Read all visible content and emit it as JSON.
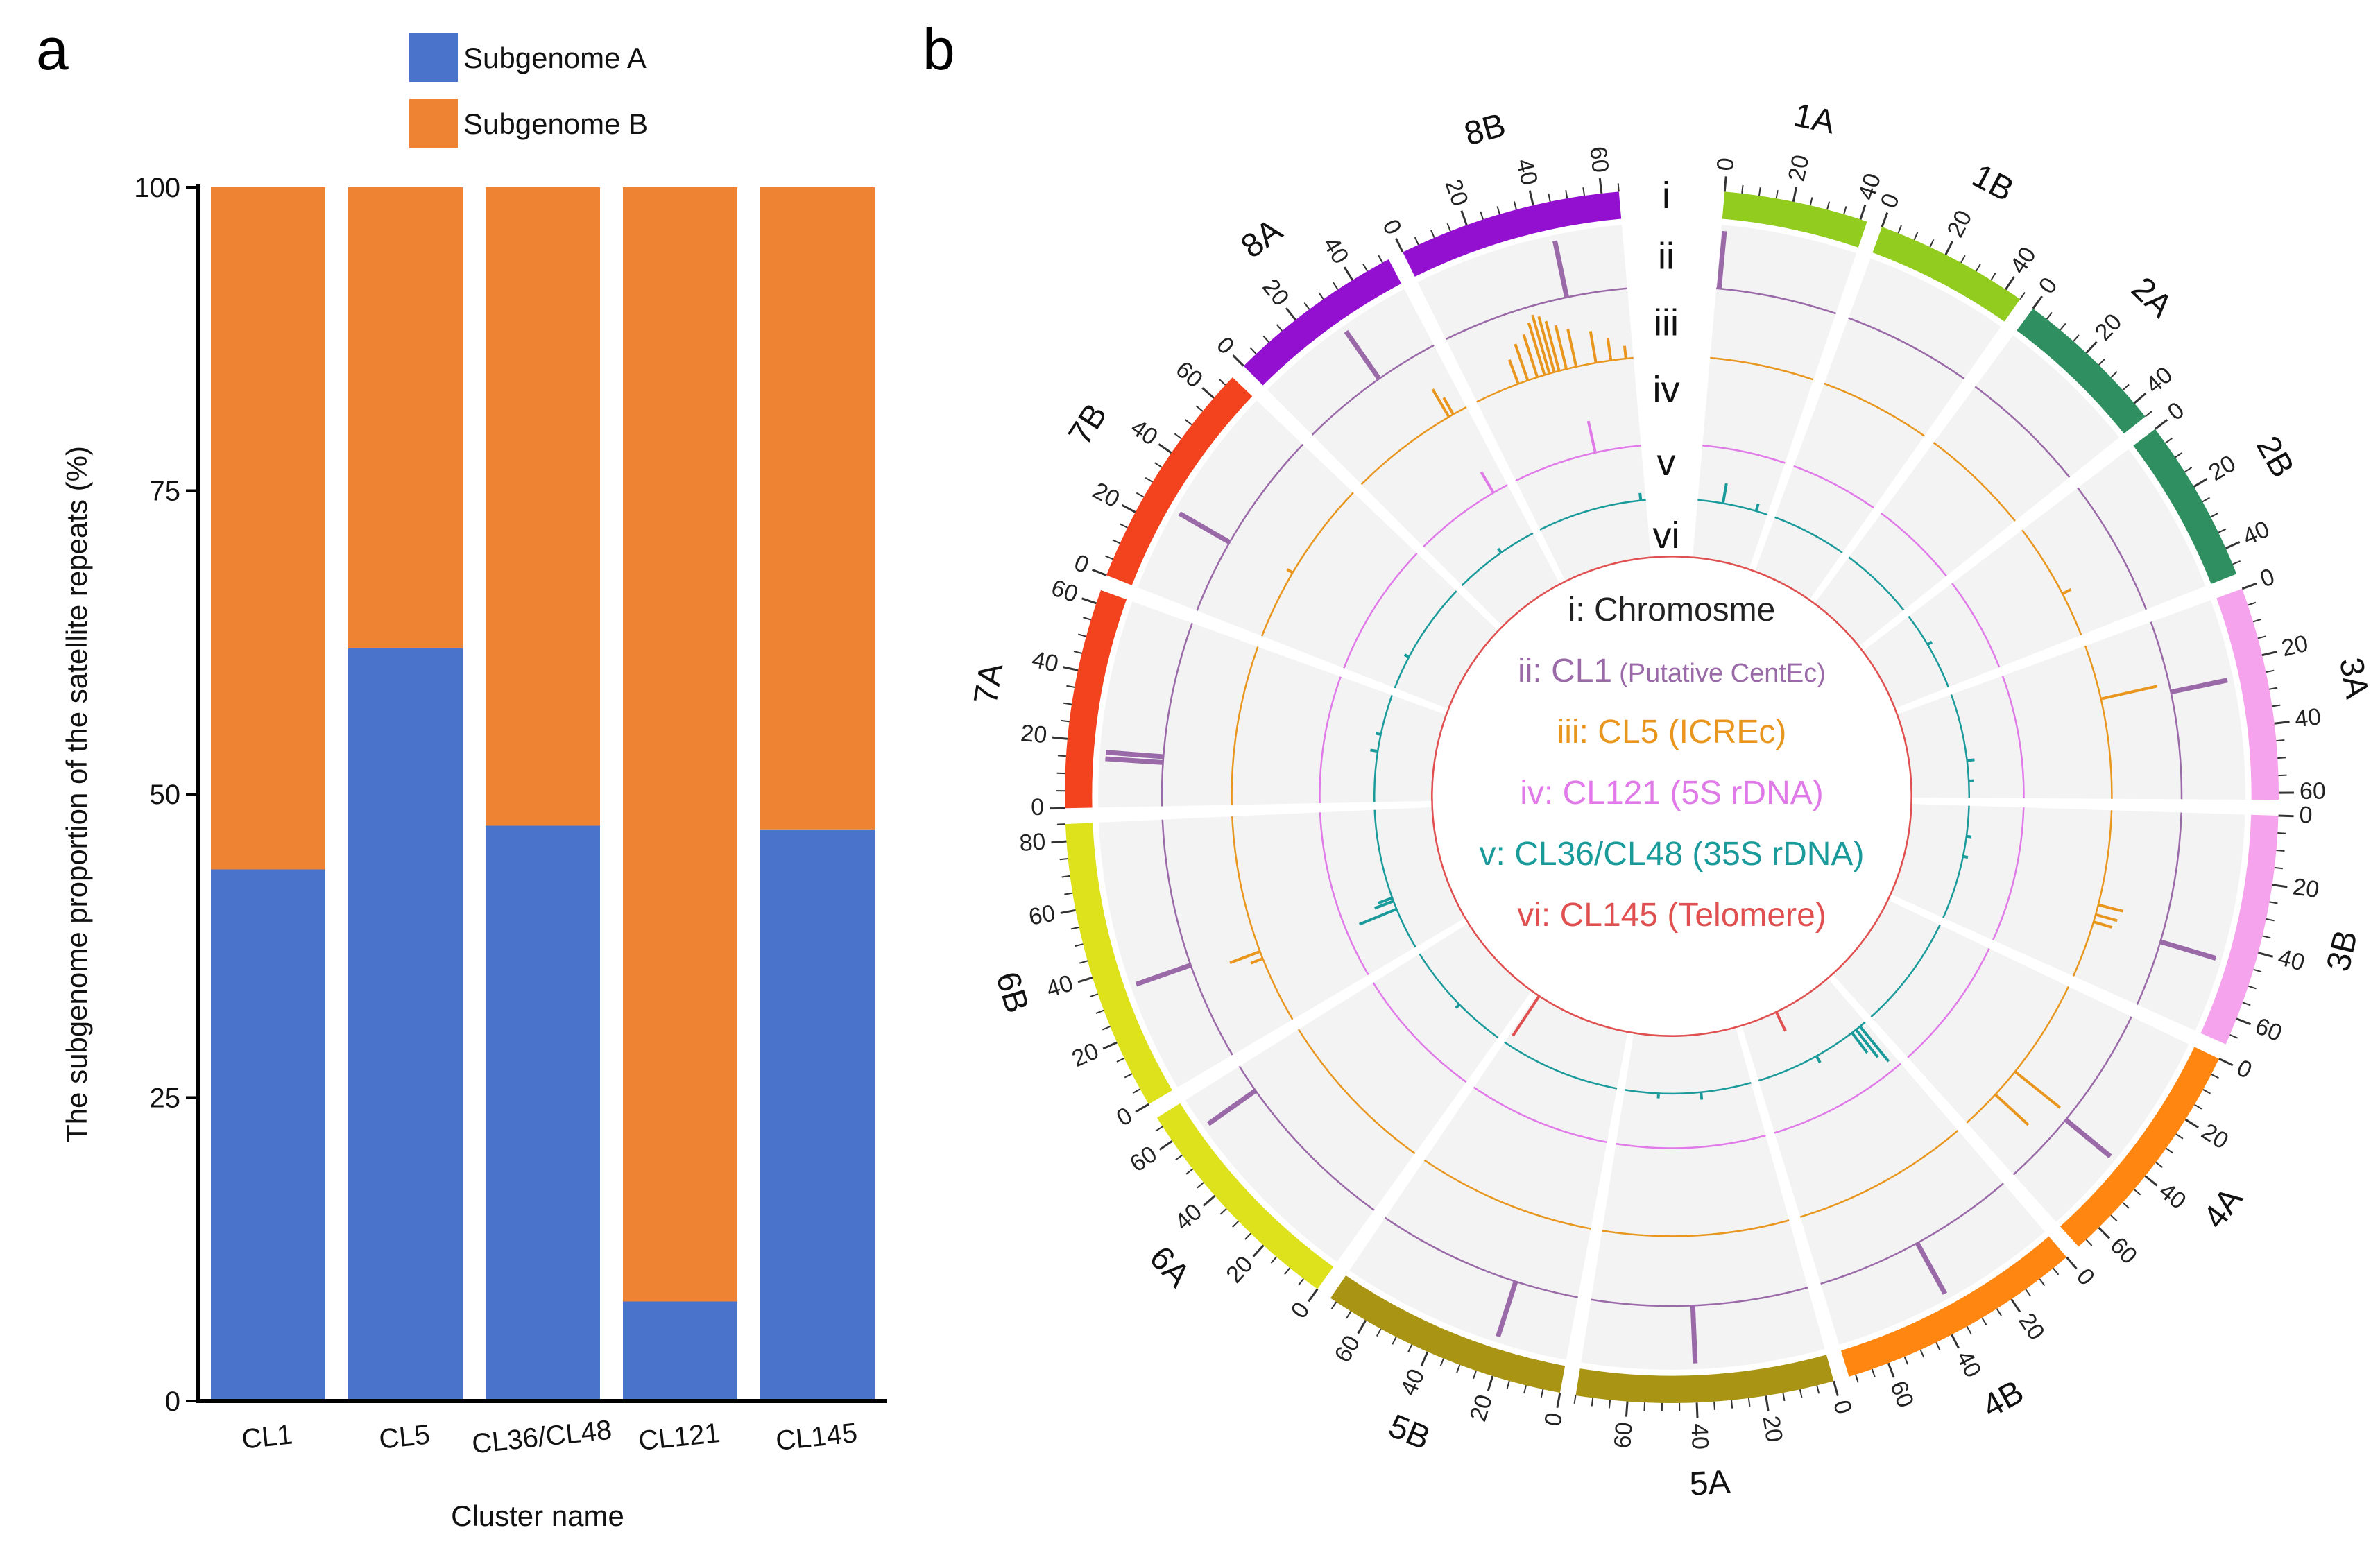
{
  "panels": {
    "a": "a",
    "b": "b"
  },
  "chart_data": [
    {
      "type": "bar",
      "stacked": true,
      "categories": [
        "CL1",
        "CL5",
        "CL36/CL48",
        "CL121",
        "CL145"
      ],
      "series": [
        {
          "name": "Subgenome A",
          "color": "#4a74cc",
          "values": [
            43.8,
            62.0,
            47.4,
            8.2,
            47.1
          ]
        },
        {
          "name": "Subgenome B",
          "color": "#ee8433",
          "values": [
            56.2,
            38.0,
            52.6,
            91.8,
            52.9
          ]
        }
      ],
      "xlabel": "Cluster name",
      "ylabel": "The subgenome proportion of the satellite repeats (%)",
      "ylim": [
        0,
        100
      ],
      "yticks": [
        0,
        25,
        50,
        75,
        100
      ],
      "legend": "top"
    },
    {
      "type": "circos",
      "tick_step": 20,
      "chromosomes": [
        {
          "name": "1A",
          "length": 42,
          "color": "#92cc1e"
        },
        {
          "name": "1B",
          "length": 45,
          "color": "#92cc1e"
        },
        {
          "name": "2A",
          "length": 45,
          "color": "#2f8f60"
        },
        {
          "name": "2B",
          "length": 48,
          "color": "#2f8f60"
        },
        {
          "name": "3A",
          "length": 62,
          "color": "#f5a3ec"
        },
        {
          "name": "3B",
          "length": 68,
          "color": "#f5a3ec"
        },
        {
          "name": "4A",
          "length": 68,
          "color": "#ff8610"
        },
        {
          "name": "4B",
          "length": 72,
          "color": "#ff8610"
        },
        {
          "name": "5A",
          "length": 75,
          "color": "#a99414"
        },
        {
          "name": "5B",
          "length": 72,
          "color": "#a99414"
        },
        {
          "name": "6A",
          "length": 68,
          "color": "#dde21c"
        },
        {
          "name": "6B",
          "length": 85,
          "color": "#dde21c"
        },
        {
          "name": "7A",
          "length": 64,
          "color": "#f2421e"
        },
        {
          "name": "7B",
          "length": 68,
          "color": "#f2421e"
        },
        {
          "name": "8A",
          "length": 52,
          "color": "#9410d0"
        },
        {
          "name": "8B",
          "length": 65,
          "color": "#9410d0"
        }
      ],
      "tracks": [
        {
          "id": "i",
          "label": "i: Chromosme",
          "color": "#222222"
        },
        {
          "id": "ii",
          "label": "ii: CL1",
          "sublabel": "(Putative CentEc)",
          "color": "#9a6aa8",
          "features": [
            [
              "1A",
              1,
              0.9
            ],
            [
              "3A",
              25,
              0.9
            ],
            [
              "3B",
              45,
              0.9
            ],
            [
              "4A",
              42,
              0.9
            ],
            [
              "4B",
              36,
              0.9
            ],
            [
              "5A",
              40,
              0.9
            ],
            [
              "5B",
              22,
              0.9
            ],
            [
              "6A",
              58,
              0.9
            ],
            [
              "6B",
              34,
              0.9
            ],
            [
              "7A",
              15,
              0.9
            ],
            [
              "7A",
              17,
              0.9
            ],
            [
              "7B",
              26,
              0.9
            ],
            [
              "8A",
              30,
              0.9
            ],
            [
              "8B",
              44,
              0.9
            ]
          ]
        },
        {
          "id": "iii",
          "label": "iii: CL5 (ICREc)",
          "color": "#e8961e",
          "features": [
            [
              "8A",
              44,
              0.5
            ],
            [
              "8A",
              46,
              0.3
            ],
            [
              "8B",
              18,
              0.4
            ],
            [
              "8B",
              22,
              0.6
            ],
            [
              "8B",
              26,
              0.7
            ],
            [
              "8B",
              29,
              0.85
            ],
            [
              "8B",
              31,
              0.95
            ],
            [
              "8B",
              33,
              0.9
            ],
            [
              "8B",
              35,
              0.8
            ],
            [
              "8B",
              38,
              0.7
            ],
            [
              "8B",
              42,
              0.6
            ],
            [
              "8B",
              50,
              0.5
            ],
            [
              "8B",
              56,
              0.35
            ],
            [
              "8B",
              62,
              0.2
            ],
            [
              "7B",
              28,
              0.1
            ],
            [
              "2B",
              30,
              0.15
            ],
            [
              "3A",
              22,
              0.9
            ],
            [
              "3B",
              38,
              0.4
            ],
            [
              "3B",
              42,
              0.35
            ],
            [
              "3B",
              45,
              0.3
            ],
            [
              "4A",
              40,
              0.9
            ],
            [
              "4A",
              52,
              0.7
            ],
            [
              "6B",
              30,
              0.5
            ],
            [
              "6B",
              27,
              0.2
            ]
          ]
        },
        {
          "id": "iv",
          "label": "iv: CL121 (5S rDNA)",
          "color": "#e07ae8",
          "features": [
            [
              "8B",
              42,
              0.4
            ],
            [
              "8A",
              44,
              0.3
            ]
          ]
        },
        {
          "id": "v",
          "label": "v: CL36/CL48 (35S rDNA)",
          "color": "#1a9a9a",
          "features": [
            [
              "1A",
              15,
              0.4
            ],
            [
              "1A",
              35,
              0.15
            ],
            [
              "2B",
              20,
              0.1
            ],
            [
              "3A",
              40,
              0.15
            ],
            [
              "3A",
              52,
              0.1
            ],
            [
              "3B",
              18,
              0.1
            ],
            [
              "3B",
              30,
              0.1
            ],
            [
              "4B",
              4,
              0.9
            ],
            [
              "4B",
              7,
              0.7
            ],
            [
              "4B",
              10,
              0.5
            ],
            [
              "4B",
              35,
              0.15
            ],
            [
              "5A",
              30,
              0.15
            ],
            [
              "5A",
              55,
              0.1
            ],
            [
              "6A",
              30,
              0.1
            ],
            [
              "6B",
              25,
              0.8
            ],
            [
              "6B",
              30,
              0.4
            ],
            [
              "6B",
              32,
              0.3
            ],
            [
              "7A",
              30,
              0.15
            ],
            [
              "7A",
              40,
              0.1
            ],
            [
              "7B",
              20,
              0.1
            ],
            [
              "8A",
              30,
              0.1
            ],
            [
              "8B",
              62,
              0.15
            ]
          ]
        },
        {
          "id": "vi",
          "label": "vi: CL145 (Telomere)",
          "color": "#e05050",
          "features": [
            [
              "4B",
              45,
              0.4
            ],
            [
              "5B",
              70,
              0.9
            ]
          ]
        }
      ]
    }
  ]
}
